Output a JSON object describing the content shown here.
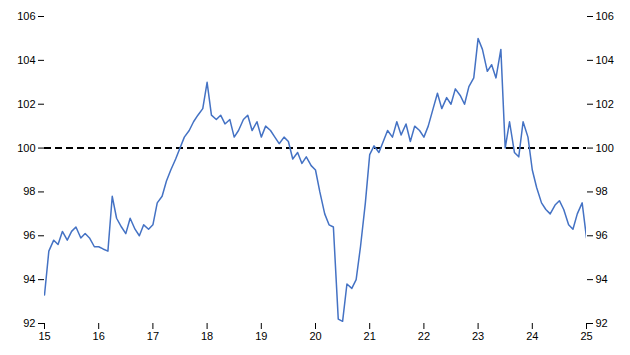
{
  "chart_data": {
    "type": "line",
    "color": "#4472C4",
    "x": [
      15.0,
      15.08,
      15.17,
      15.25,
      15.33,
      15.42,
      15.5,
      15.58,
      15.67,
      15.75,
      15.83,
      15.92,
      16.0,
      16.08,
      16.17,
      16.25,
      16.33,
      16.42,
      16.5,
      16.58,
      16.67,
      16.75,
      16.83,
      16.92,
      17.0,
      17.08,
      17.17,
      17.25,
      17.33,
      17.42,
      17.5,
      17.58,
      17.67,
      17.75,
      17.83,
      17.92,
      18.0,
      18.08,
      18.17,
      18.25,
      18.33,
      18.42,
      18.5,
      18.58,
      18.67,
      18.75,
      18.83,
      18.92,
      19.0,
      19.08,
      19.17,
      19.25,
      19.33,
      19.42,
      19.5,
      19.58,
      19.67,
      19.75,
      19.83,
      19.92,
      20.0,
      20.08,
      20.17,
      20.25,
      20.33,
      20.42,
      20.5,
      20.58,
      20.67,
      20.75,
      20.83,
      20.92,
      21.0,
      21.08,
      21.17,
      21.25,
      21.33,
      21.42,
      21.5,
      21.58,
      21.67,
      21.75,
      21.83,
      21.92,
      22.0,
      22.08,
      22.17,
      22.25,
      22.33,
      22.42,
      22.5,
      22.58,
      22.67,
      22.75,
      22.83,
      22.92,
      23.0,
      23.08,
      23.17,
      23.25,
      23.33,
      23.42,
      23.5,
      23.58,
      23.67,
      23.75,
      23.83,
      23.92,
      24.0,
      24.08,
      24.17,
      24.25,
      24.33,
      24.42,
      24.5,
      24.58,
      24.67,
      24.75,
      24.83,
      24.92,
      25.0
    ],
    "values": [
      93.3,
      95.3,
      95.8,
      95.6,
      96.2,
      95.8,
      96.2,
      96.4,
      95.9,
      96.1,
      95.9,
      95.5,
      95.5,
      95.4,
      95.3,
      97.8,
      96.8,
      96.4,
      96.1,
      96.8,
      96.3,
      96.0,
      96.5,
      96.3,
      96.5,
      97.5,
      97.8,
      98.5,
      99.0,
      99.5,
      100.0,
      100.5,
      100.8,
      101.2,
      101.5,
      101.8,
      103.0,
      101.5,
      101.3,
      101.5,
      101.1,
      101.3,
      100.5,
      100.8,
      101.3,
      101.5,
      100.8,
      101.2,
      100.5,
      101.0,
      100.8,
      100.5,
      100.2,
      100.5,
      100.3,
      99.5,
      99.8,
      99.3,
      99.6,
      99.2,
      99.0,
      98.0,
      97.0,
      96.5,
      96.4,
      92.2,
      92.1,
      93.8,
      93.6,
      94.0,
      95.5,
      97.5,
      99.7,
      100.1,
      99.8,
      100.3,
      100.8,
      100.5,
      101.2,
      100.6,
      101.1,
      100.3,
      101.0,
      100.8,
      100.5,
      101.0,
      101.8,
      102.5,
      101.8,
      102.3,
      102.0,
      102.7,
      102.4,
      102.0,
      102.8,
      103.2,
      105.0,
      104.5,
      103.5,
      103.8,
      103.2,
      104.5,
      100.0,
      101.2,
      99.8,
      99.6,
      101.2,
      100.5,
      99.0,
      98.2,
      97.5,
      97.2,
      97.0,
      97.4,
      97.6,
      97.2,
      96.5,
      96.3,
      97.0,
      97.5,
      95.9
    ],
    "reference_line": {
      "y": 100,
      "color": "#000000",
      "line_style": "dashed"
    },
    "xlim": [
      15,
      25
    ],
    "xticks": [
      15,
      16,
      17,
      18,
      19,
      20,
      21,
      22,
      23,
      24,
      25
    ],
    "ylim": [
      92,
      106
    ],
    "yticks": [
      92,
      94,
      96,
      98,
      100,
      102,
      104,
      106
    ],
    "y2lim": [
      92,
      106
    ],
    "y2ticks": [
      92,
      94,
      96,
      98,
      100,
      102,
      104,
      106
    ],
    "grid": false
  }
}
